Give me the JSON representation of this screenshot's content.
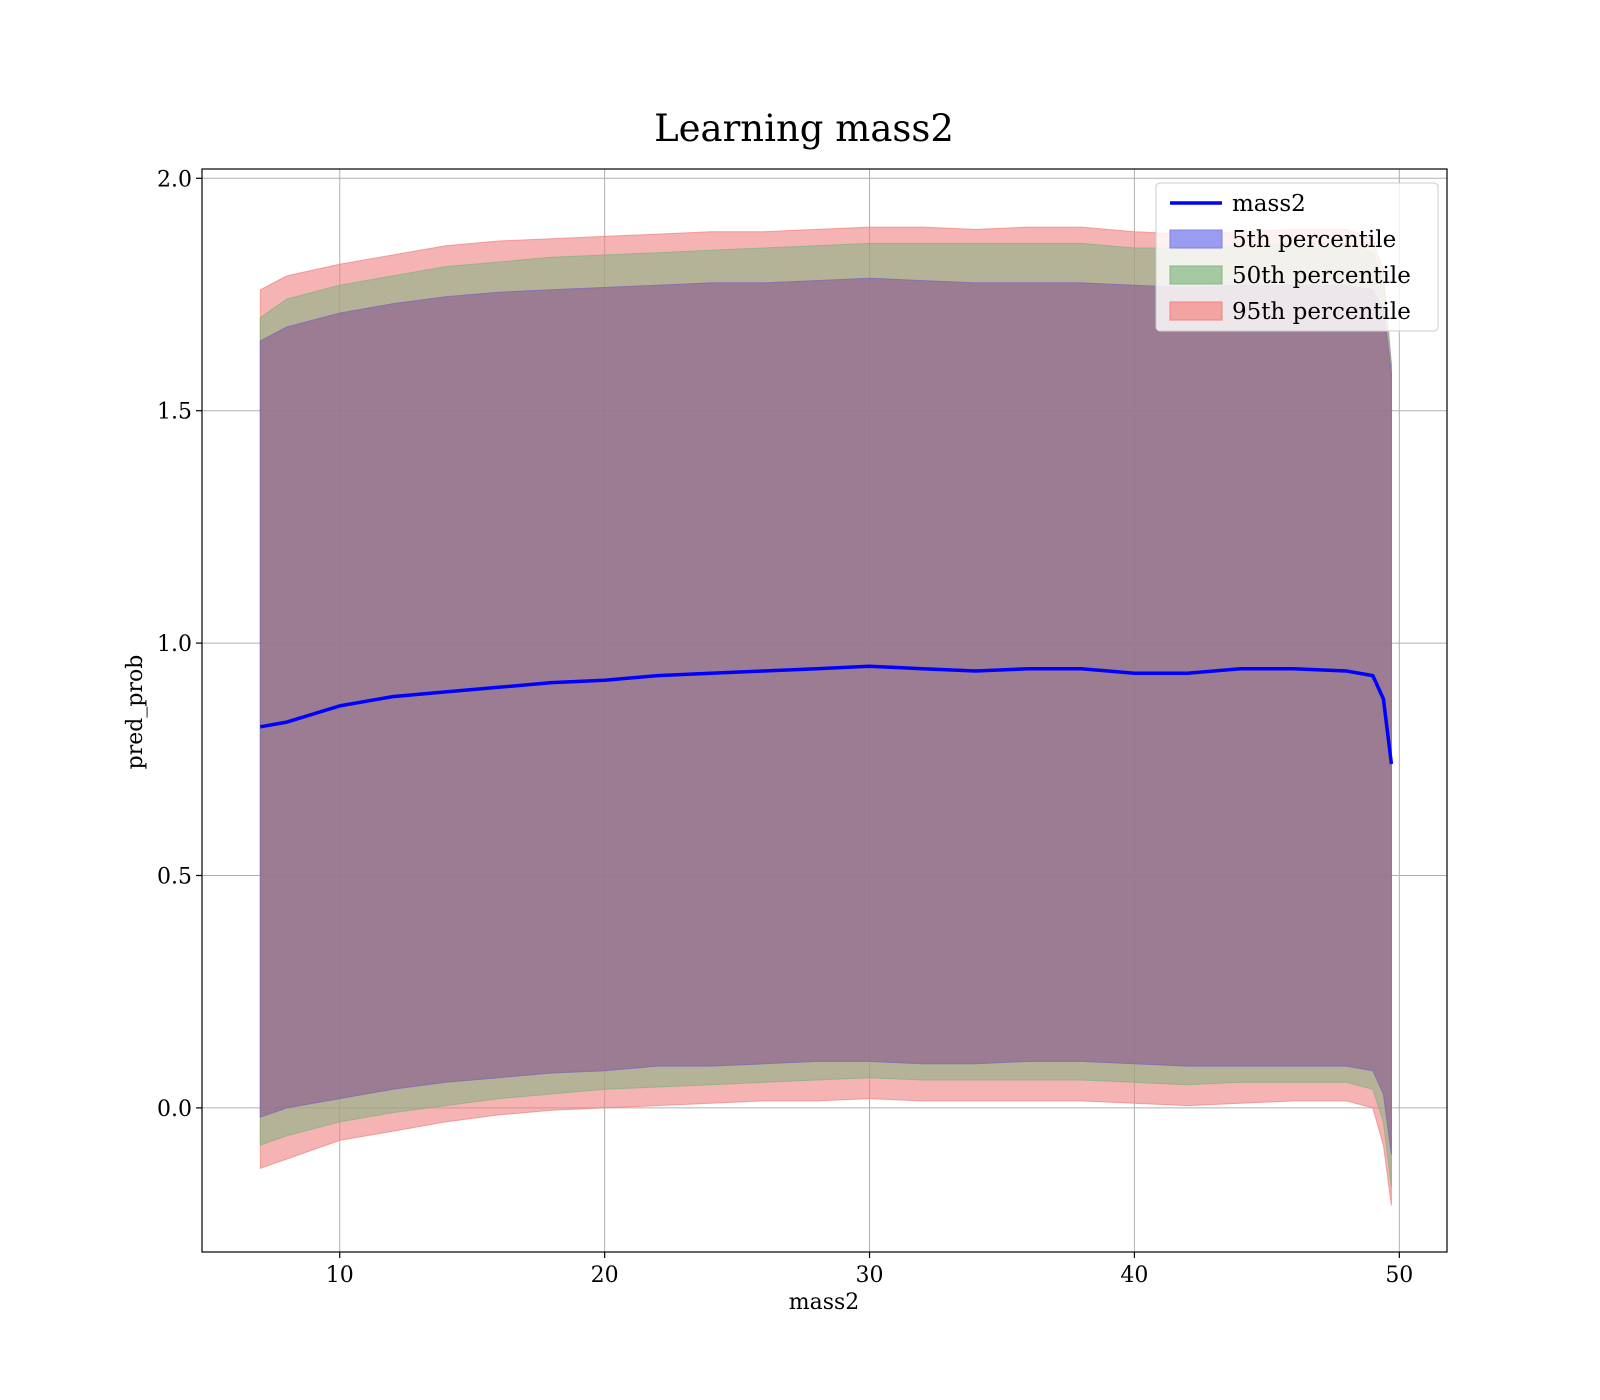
{
  "chart_data": {
    "type": "area",
    "title": "Learning mass2",
    "xlabel": "mass2",
    "ylabel": "pred_prob",
    "xlim": [
      4.8,
      51.8
    ],
    "ylim": [
      -0.31,
      2.02
    ],
    "xticks": [
      10,
      20,
      30,
      40,
      50
    ],
    "yticks": [
      0.0,
      0.5,
      1.0,
      1.5,
      2.0
    ],
    "xtick_labels": [
      "10",
      "20",
      "30",
      "40",
      "50"
    ],
    "ytick_labels": [
      "0.0",
      "0.5",
      "1.0",
      "1.5",
      "2.0"
    ],
    "grid": true,
    "legend_position": "upper right",
    "colors": {
      "line": "#0000ff",
      "p5": "#6b5bd6",
      "p50": "#7fb27f",
      "p95": "#f08080",
      "band_overlap": "#a27179"
    },
    "legend": [
      {
        "label": "mass2",
        "kind": "line",
        "color": "#0000ff"
      },
      {
        "label": "5th percentile",
        "kind": "patch",
        "color": "#9a9cf2",
        "edge": "#7f7fe0"
      },
      {
        "label": "50th percentile",
        "kind": "patch",
        "color": "#a4c9a0",
        "edge": "#8cb487"
      },
      {
        "label": "95th percentile",
        "kind": "patch",
        "color": "#f4a3a3",
        "edge": "#ef8080"
      }
    ],
    "x": [
      7.0,
      8.0,
      10.0,
      12.0,
      14.0,
      16.0,
      18.0,
      20.0,
      22.0,
      24.0,
      26.0,
      28.0,
      30.0,
      32.0,
      34.0,
      36.0,
      38.0,
      40.0,
      42.0,
      44.0,
      46.0,
      48.0,
      49.0,
      49.4,
      49.7
    ],
    "series": [
      {
        "name": "mass2",
        "role": "line",
        "values": [
          0.82,
          0.83,
          0.865,
          0.885,
          0.895,
          0.905,
          0.915,
          0.92,
          0.93,
          0.935,
          0.94,
          0.945,
          0.95,
          0.945,
          0.94,
          0.945,
          0.945,
          0.935,
          0.935,
          0.945,
          0.945,
          0.94,
          0.93,
          0.88,
          0.74
        ]
      },
      {
        "name": "5th percentile",
        "role": "band",
        "upper": [
          1.65,
          1.68,
          1.71,
          1.73,
          1.745,
          1.755,
          1.76,
          1.765,
          1.77,
          1.775,
          1.775,
          1.78,
          1.785,
          1.78,
          1.775,
          1.775,
          1.775,
          1.77,
          1.765,
          1.77,
          1.77,
          1.77,
          1.76,
          1.72,
          1.58
        ],
        "lower": [
          -0.02,
          0.0,
          0.02,
          0.04,
          0.055,
          0.065,
          0.075,
          0.08,
          0.09,
          0.09,
          0.095,
          0.1,
          0.1,
          0.095,
          0.095,
          0.1,
          0.1,
          0.095,
          0.09,
          0.09,
          0.09,
          0.09,
          0.08,
          0.03,
          -0.1
        ]
      },
      {
        "name": "50th percentile",
        "role": "band",
        "upper": [
          1.7,
          1.74,
          1.77,
          1.79,
          1.81,
          1.82,
          1.83,
          1.835,
          1.84,
          1.845,
          1.85,
          1.855,
          1.86,
          1.86,
          1.86,
          1.86,
          1.86,
          1.85,
          1.85,
          1.855,
          1.86,
          1.86,
          1.84,
          1.78,
          1.6
        ],
        "lower": [
          -0.08,
          -0.06,
          -0.03,
          -0.01,
          0.005,
          0.02,
          0.03,
          0.04,
          0.045,
          0.05,
          0.055,
          0.06,
          0.065,
          0.06,
          0.06,
          0.06,
          0.06,
          0.055,
          0.05,
          0.055,
          0.055,
          0.055,
          0.04,
          -0.03,
          -0.17
        ]
      },
      {
        "name": "95th percentile",
        "role": "band",
        "upper": [
          1.76,
          1.79,
          1.815,
          1.835,
          1.855,
          1.865,
          1.87,
          1.875,
          1.88,
          1.885,
          1.885,
          1.89,
          1.895,
          1.895,
          1.89,
          1.895,
          1.895,
          1.885,
          1.88,
          1.885,
          1.89,
          1.89,
          1.87,
          1.8,
          1.6
        ],
        "lower": [
          -0.13,
          -0.11,
          -0.07,
          -0.05,
          -0.03,
          -0.015,
          -0.005,
          0.0,
          0.005,
          0.01,
          0.015,
          0.015,
          0.02,
          0.015,
          0.015,
          0.015,
          0.015,
          0.01,
          0.005,
          0.01,
          0.015,
          0.015,
          0.0,
          -0.08,
          -0.21
        ]
      }
    ]
  }
}
